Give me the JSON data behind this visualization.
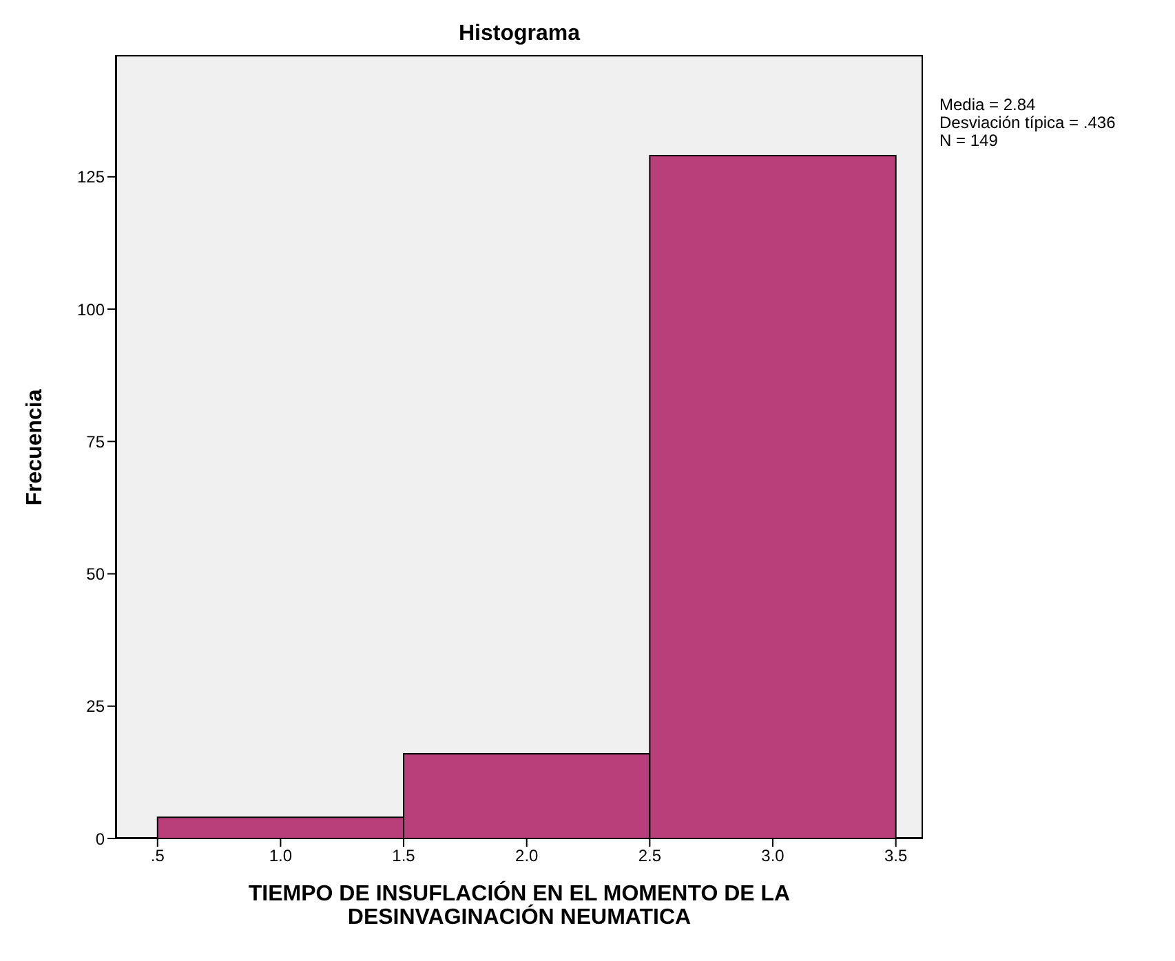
{
  "chart_data": {
    "type": "histogram",
    "title": "Histograma",
    "xlabel": "TIEMPO DE INSUFLACIÓN EN EL MOMENTO DE LA DESINVAGINACIÓN NEUMATICA",
    "ylabel": "Frecuencia",
    "bins": [
      0.5,
      1.5,
      2.5,
      3.5
    ],
    "values": [
      4,
      16,
      129
    ],
    "color": "#b93f7b",
    "xlim": [
      0.33,
      3.61
    ],
    "xticks": [
      {
        "value": 0.5,
        "label": ".5"
      },
      {
        "value": 1,
        "label": "1.0"
      },
      {
        "value": 1.5,
        "label": "1.5"
      },
      {
        "value": 2,
        "label": "2.0"
      },
      {
        "value": 2.5,
        "label": "2.5"
      },
      {
        "value": 3,
        "label": "3.0"
      },
      {
        "value": 3.5,
        "label": "3.5"
      }
    ],
    "ylim": [
      0,
      148
    ],
    "yticks": [
      0,
      25,
      50,
      75,
      100,
      125
    ],
    "annotations": [
      "Media = 2.84",
      "Desviación típica = .436",
      "N = 149"
    ]
  }
}
